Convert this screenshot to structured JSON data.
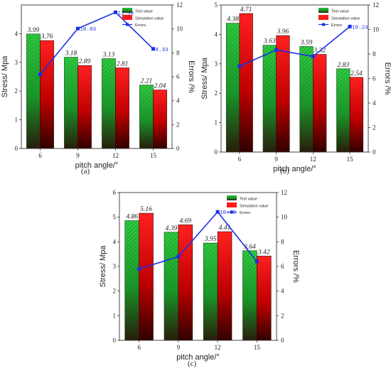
{
  "colors": {
    "test": "#22b14c",
    "test_dark": "#1f5f1a",
    "sim": "#ff1a1a",
    "sim_dark": "#4a0000",
    "errors": "#1a2ee6",
    "value_label": "#222222"
  },
  "chart_data": [
    {
      "panel": "(a)",
      "type": "bar",
      "xlabel": "pitch angle/°",
      "ylabel": "Stress/ Mpa",
      "y2label": "Errors /%",
      "categories": [
        "6",
        "9",
        "12",
        "15"
      ],
      "ylim": [
        0,
        5
      ],
      "yticks": [
        "0",
        "1",
        "2",
        "3",
        "4"
      ],
      "y2lim": [
        0,
        12
      ],
      "y2ticks": [
        "0",
        "2",
        "4",
        "6",
        "8",
        "10",
        "12"
      ],
      "series": [
        {
          "name": "Test value",
          "values": [
            3.99,
            3.18,
            3.13,
            2.21
          ],
          "labels": [
            "3.99",
            "3.18",
            "3.13",
            "2.21"
          ]
        },
        {
          "name": "Simulation value",
          "values": [
            3.76,
            2.89,
            2.81,
            2.04
          ],
          "labels": [
            "3.76",
            "2.89",
            "2.81",
            "2.04"
          ]
        },
        {
          "name": "Errors",
          "values": [
            6.2,
            10.03,
            11.39,
            8.33
          ],
          "labels": [
            "",
            "10.03",
            "11.39",
            "8.33"
          ]
        }
      ],
      "legend": "top-right",
      "grid": false
    },
    {
      "panel": "(b)",
      "type": "bar",
      "xlabel": "pitch angle/°",
      "ylabel": "Stress/ Mpa",
      "y2label": "Errors /%",
      "categories": [
        "6",
        "9",
        "12",
        "15"
      ],
      "ylim": [
        0,
        5
      ],
      "yticks": [
        "0",
        "1",
        "2",
        "3",
        "4",
        "5"
      ],
      "y2lim": [
        0,
        12
      ],
      "y2ticks": [
        "0",
        "2",
        "4",
        "6",
        "8",
        "10",
        "12"
      ],
      "series": [
        {
          "name": "Test value",
          "values": [
            4.38,
            3.63,
            3.59,
            2.83
          ],
          "labels": [
            "4.38",
            "3.63",
            "3.59",
            "2.83"
          ]
        },
        {
          "name": "Simulation value",
          "values": [
            4.71,
            3.96,
            3.32,
            2.54
          ],
          "labels": [
            "4.71",
            "3.96",
            "3.32",
            "2.54"
          ]
        },
        {
          "name": "Errors",
          "values": [
            7.0,
            8.33,
            7.8,
            10.24
          ],
          "labels": [
            "",
            "",
            "",
            "10.24"
          ]
        }
      ],
      "legend": "top-right",
      "grid": false
    },
    {
      "panel": "(c)",
      "type": "bar",
      "xlabel": "pitch angle/°",
      "ylabel": "Stress/ Mpa",
      "y2label": "Errors /%",
      "categories": [
        "6",
        "9",
        "12",
        "15"
      ],
      "ylim": [
        0,
        6
      ],
      "yticks": [
        "0",
        "1",
        "2",
        "3",
        "4",
        "5",
        "6"
      ],
      "y2lim": [
        0,
        12
      ],
      "y2ticks": [
        "0",
        "2",
        "4",
        "6",
        "8",
        "10",
        "12"
      ],
      "series": [
        {
          "name": "Test value",
          "values": [
            4.86,
            4.39,
            3.95,
            3.64
          ],
          "labels": [
            "4.86",
            "4.39",
            "3.95",
            "3.64"
          ]
        },
        {
          "name": "Simulation value",
          "values": [
            5.16,
            4.69,
            4.41,
            3.42
          ],
          "labels": [
            "5.16",
            "4.69",
            "4.41",
            "3.42"
          ]
        },
        {
          "name": "Errors",
          "values": [
            5.8,
            6.8,
            10.43,
            6.4
          ],
          "labels": [
            "",
            "",
            "10.43",
            ""
          ]
        }
      ],
      "legend": "top-right",
      "grid": false
    }
  ]
}
